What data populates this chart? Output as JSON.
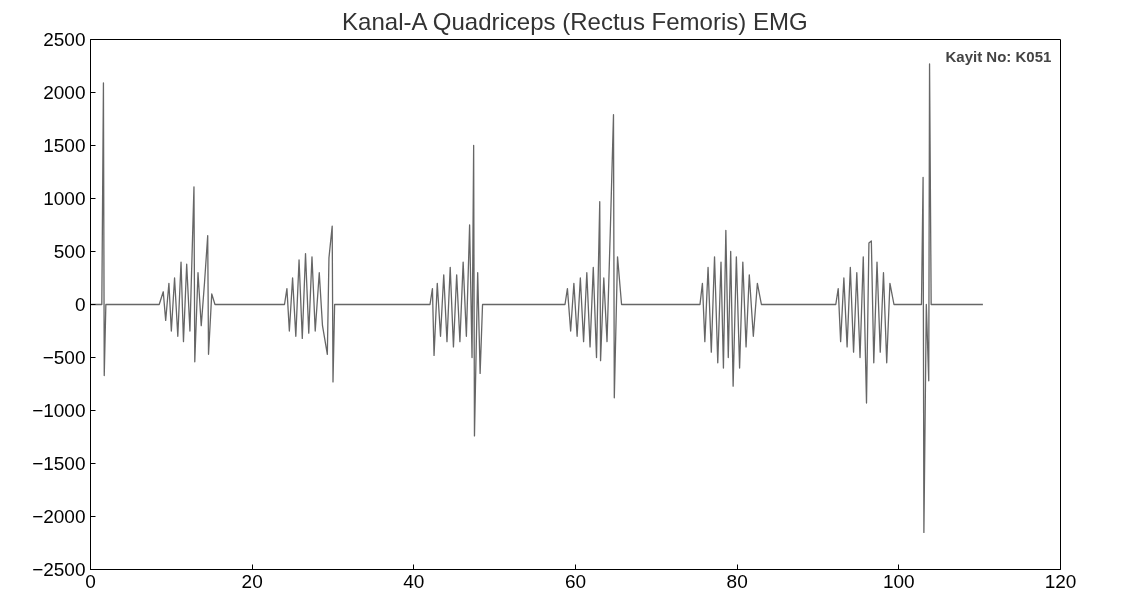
{
  "chart_data": {
    "type": "line",
    "title": "Kanal-A Quadriceps (Rectus Femoris) EMG",
    "annotations": [
      "Kayit No:  K051"
    ],
    "x": [
      0,
      1.4,
      1.6,
      1.7,
      1.9,
      8.5,
      9,
      9.3,
      9.7,
      10,
      10.4,
      10.8,
      11.2,
      11.5,
      11.9,
      12.3,
      12.8,
      12.9,
      13.3,
      13.7,
      14.1,
      14.5,
      14.6,
      15,
      15.4,
      24,
      24.3,
      24.6,
      25,
      25.4,
      25.8,
      26.2,
      26.6,
      27,
      27.4,
      27.8,
      28.3,
      28.7,
      29.3,
      29.5,
      29.9,
      30,
      30.2,
      42,
      42.3,
      42.5,
      42.9,
      43.3,
      43.7,
      44.1,
      44.5,
      44.9,
      45.3,
      45.7,
      46.1,
      46.5,
      46.9,
      47.2,
      47.4,
      47.5,
      47.9,
      48.2,
      48.5,
      58.7,
      59,
      59.4,
      59.8,
      60.2,
      60.6,
      61,
      61.4,
      61.8,
      62.2,
      62.6,
      63,
      63.1,
      63.5,
      63.9,
      64.3,
      64.7,
      64.8,
      65.2,
      65.7,
      75.4,
      75.7,
      76,
      76.4,
      76.8,
      77.2,
      77.6,
      78,
      78.3,
      78.6,
      78.9,
      79.2,
      79.5,
      79.9,
      80.3,
      80.7,
      81.1,
      81.5,
      82,
      82.5,
      83,
      92.2,
      92.5,
      92.8,
      93.2,
      93.6,
      94,
      94.4,
      94.8,
      95.2,
      95.6,
      96,
      96.3,
      96.6,
      96.9,
      97.3,
      97.7,
      98.1,
      98.5,
      98.9,
      99.4,
      102.8,
      103,
      103.1,
      103.4,
      103.7,
      103.8,
      104,
      110.4
    ],
    "series": [
      {
        "color": "#666666",
        "values": [
          0,
          0,
          2090,
          -670,
          0,
          0,
          120,
          -150,
          200,
          -250,
          250,
          -300,
          400,
          -350,
          380,
          -250,
          1110,
          -540,
          300,
          -200,
          200,
          650,
          -470,
          100,
          0,
          0,
          150,
          -250,
          250,
          -300,
          420,
          -320,
          480,
          -270,
          450,
          -250,
          300,
          -200,
          -470,
          440,
          740,
          -730,
          0,
          0,
          150,
          -480,
          200,
          -300,
          280,
          -350,
          350,
          -400,
          280,
          -350,
          400,
          -300,
          750,
          -500,
          1500,
          -1240,
          300,
          -650,
          0,
          0,
          150,
          -250,
          200,
          -300,
          250,
          -350,
          300,
          -400,
          350,
          -500,
          970,
          -530,
          250,
          -350,
          680,
          1790,
          -880,
          450,
          0,
          0,
          200,
          -350,
          350,
          -450,
          450,
          -550,
          400,
          -600,
          700,
          -500,
          500,
          -770,
          450,
          -600,
          400,
          -400,
          280,
          -300,
          200,
          0,
          0,
          150,
          -350,
          250,
          -400,
          350,
          -450,
          300,
          -500,
          450,
          -930,
          580,
          600,
          -550,
          400,
          -450,
          300,
          -550,
          200,
          0,
          0,
          1200,
          -2150,
          0,
          -720,
          2270,
          0,
          0
        ]
      }
    ],
    "xlim": [
      0,
      120
    ],
    "xticks": [
      0,
      20,
      40,
      60,
      80,
      100,
      120
    ],
    "ylim": [
      -2500,
      2500
    ],
    "yticks": [
      -2500,
      -2000,
      -1500,
      -1000,
      -500,
      0,
      500,
      1000,
      1500,
      2000,
      2500
    ],
    "grid": false
  }
}
